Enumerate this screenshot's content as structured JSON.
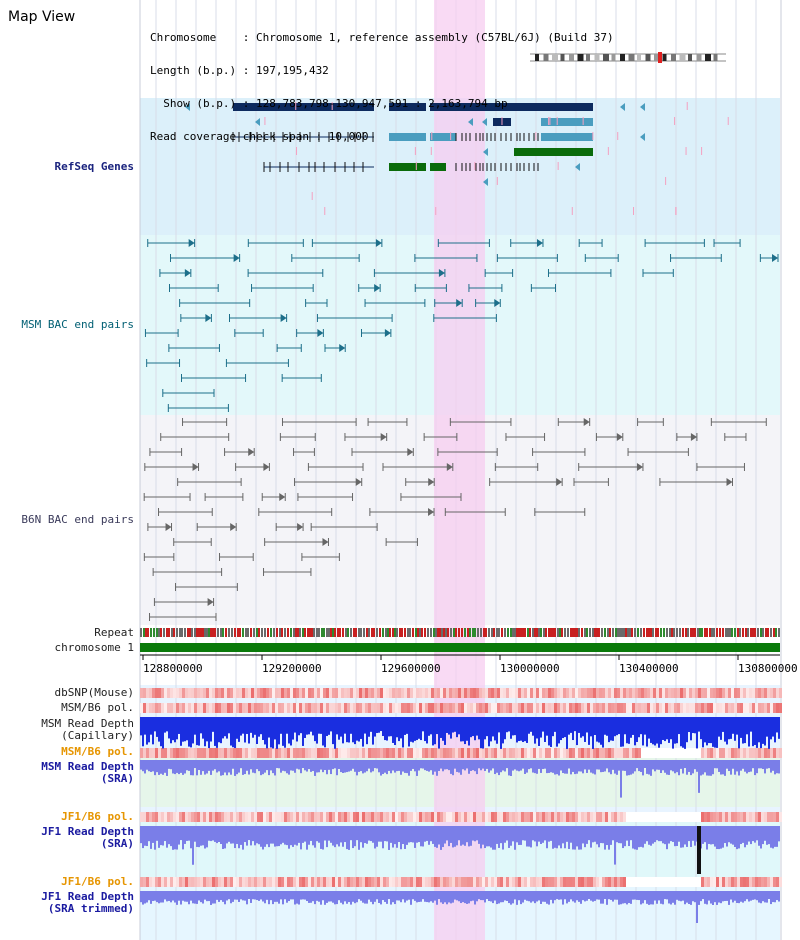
{
  "page_title": "Map View",
  "info": {
    "chromosome_line": "Chromosome    : Chromosome 1, reference assembly (C57BL/6J) (Build 37)",
    "length_line": "Length (b.p.) : 197,195,432",
    "show_line": "  Show (b.p.) : 128,783,798-130,947,591 : 2,163,794 bp",
    "coverage_line": "Read coverage check span : 10,000"
  },
  "tracks": {
    "refseq": "RefSeq Genes",
    "msm_bac": "MSM BAC end pairs",
    "b6n_bac": "B6N BAC end pairs",
    "repeat": "Repeat",
    "chromosome": "chromosome 1",
    "dbsnp": "dbSNP(Mouse)",
    "msm_b6_pol": "MSM/B6 pol.",
    "msm_depth_cap_1": "MSM Read Depth",
    "msm_depth_cap_2": "(Capillary)",
    "msm_b6_pol_sra": "MSM/B6 pol.",
    "msm_depth_sra_1": "MSM Read Depth",
    "msm_depth_sra_2": "(SRA)",
    "jf1_b6_pol": "JF1/B6 pol.",
    "jf1_depth_1": "JF1 Read Depth",
    "jf1_depth_2": "(SRA)",
    "jf1_b6_pol_trim": "JF1/B6 pol.",
    "jf1_trim_1": "JF1 Read Depth",
    "jf1_trim_2": "(SRA trimmed)"
  },
  "axis": {
    "ticks": [
      "128800000",
      "129200000",
      "129600000",
      "130000000",
      "130400000",
      "130800000"
    ]
  },
  "colors": {
    "refseq_bg": "#dcf0fa",
    "msm_bg": "#e3f8fa",
    "b6n_bg": "#f4f4f8",
    "highlight": "#f7cdf0",
    "gene_navy": "#0d2a5e",
    "gene_blue": "#4a9dbf",
    "gene_green": "#0a6b0a",
    "bac_teal": "#1d6f8a",
    "bac_gray": "#666666",
    "chrom_green": "#0a7a0a",
    "depth_blue": "#1a2ee0",
    "depth_lightblue": "#7a7ee8"
  }
}
